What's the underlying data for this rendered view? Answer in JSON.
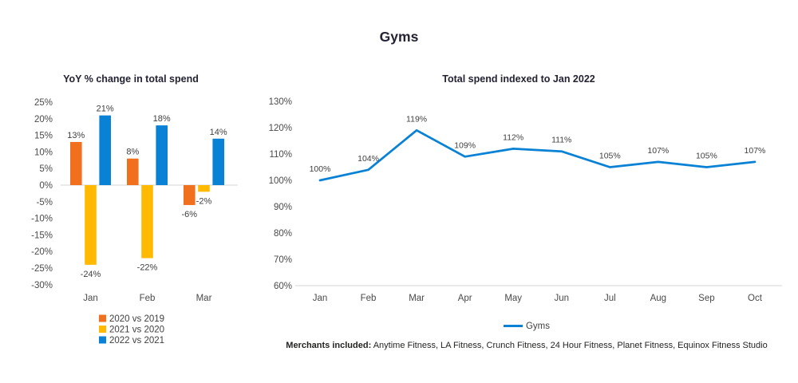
{
  "page_title": "Gyms",
  "colors": {
    "blue": "#0982D5",
    "orange": "#F0701E",
    "yellow": "#FFB900",
    "axis_line": "#D6D6D6",
    "tick_text": "#4A4A4A",
    "data_label_text": "#3F3F3F",
    "title_text": "#232333"
  },
  "chart_data": [
    {
      "type": "bar",
      "title": "YoY % change in total spend",
      "categories": [
        "Jan",
        "Feb",
        "Mar"
      ],
      "series": [
        {
          "name": "2020 vs 2019",
          "color": "#F0701E",
          "values": [
            13,
            8,
            -6
          ]
        },
        {
          "name": "2021 vs 2020",
          "color": "#FFB900",
          "values": [
            -24,
            -22,
            -2
          ]
        },
        {
          "name": "2022 vs 2021",
          "color": "#0982D5",
          "values": [
            21,
            18,
            14
          ]
        }
      ],
      "ylim": [
        -30,
        25
      ],
      "tick_step": 5,
      "unit": "%",
      "grid": "zero-line-only",
      "legend_position": "bottom-left",
      "data_labels": true
    },
    {
      "type": "line",
      "title": "Total spend indexed to Jan 2022",
      "categories": [
        "Jan",
        "Feb",
        "Mar",
        "Apr",
        "May",
        "Jun",
        "Jul",
        "Aug",
        "Sep",
        "Oct"
      ],
      "series": [
        {
          "name": "Gyms",
          "color": "#0982D5",
          "values": [
            100,
            104,
            119,
            109,
            112,
            111,
            105,
            107,
            105,
            107
          ]
        }
      ],
      "ylim": [
        60,
        130
      ],
      "tick_step": 10,
      "unit": "%",
      "grid": "baseline-only",
      "legend_position": "bottom",
      "data_labels": true
    }
  ],
  "footnote": {
    "label": "Merchants included:",
    "text": "Anytime Fitness, LA Fitness, Crunch Fitness, 24 Hour Fitness, Planet Fitness, Equinox Fitness Studio"
  }
}
